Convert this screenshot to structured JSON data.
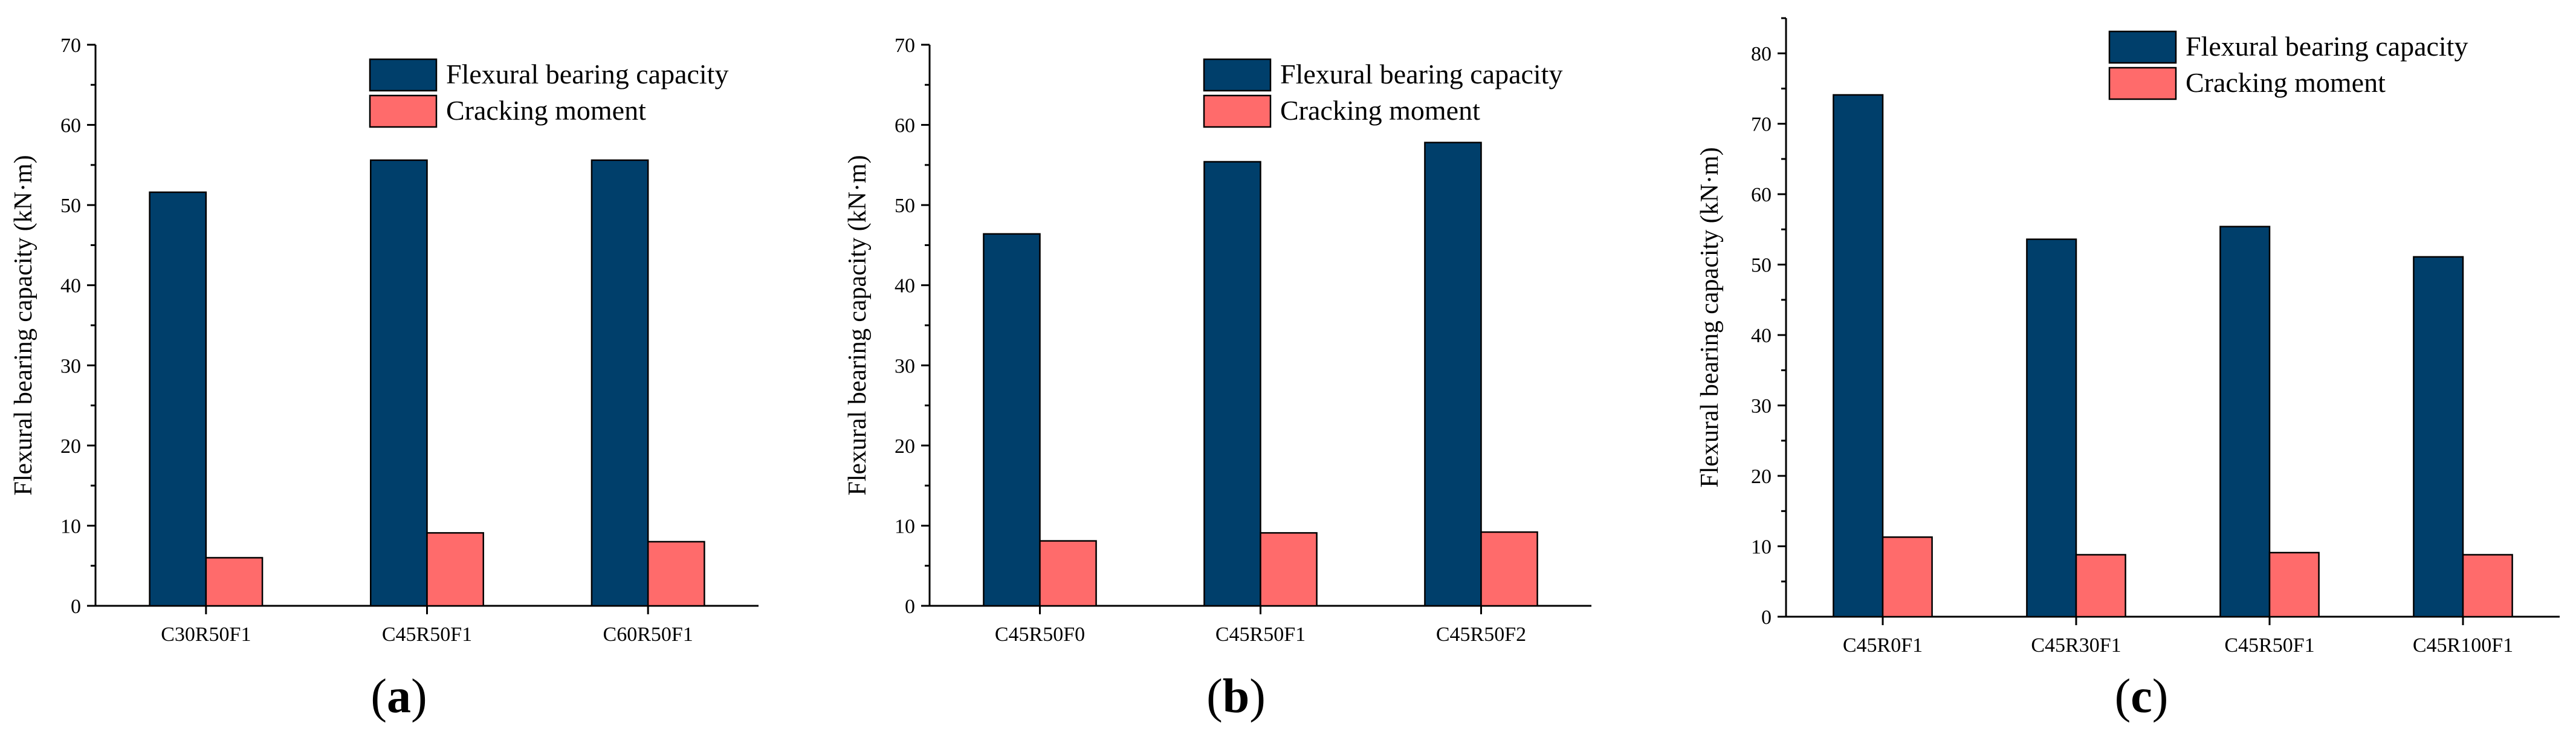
{
  "colors": {
    "flexural": "#003f6b",
    "cracking": "#ff6b6b"
  },
  "chart_data": [
    {
      "type": "bar",
      "panel": "a",
      "panel_label": "(a)",
      "categories": [
        "C30R50F1",
        "C45R50F1",
        "C60R50F1"
      ],
      "series": [
        {
          "name": "Flexural bearing capacity",
          "values": [
            51.6,
            55.6,
            55.6
          ]
        },
        {
          "name": "Cracking moment",
          "values": [
            6.0,
            9.1,
            8.0
          ]
        }
      ],
      "xlabel": "",
      "ylabel": "Flexural bearing capacity (kN·m)",
      "ylim": [
        0,
        70
      ],
      "yticks": [
        0,
        10,
        20,
        30,
        40,
        50,
        60,
        70
      ],
      "legend": "top-right"
    },
    {
      "type": "bar",
      "panel": "b",
      "panel_label": "(b)",
      "categories": [
        "C45R50F0",
        "C45R50F1",
        "C45R50F2"
      ],
      "series": [
        {
          "name": "Flexural bearing capacity",
          "values": [
            46.4,
            55.4,
            57.8
          ]
        },
        {
          "name": "Cracking moment",
          "values": [
            8.1,
            9.1,
            9.2
          ]
        }
      ],
      "xlabel": "",
      "ylabel": "Flexural bearing capacity (kN·m)",
      "ylim": [
        0,
        70
      ],
      "yticks": [
        0,
        10,
        20,
        30,
        40,
        50,
        60,
        70
      ],
      "legend": "top-right"
    },
    {
      "type": "bar",
      "panel": "c",
      "panel_label": "(c)",
      "categories": [
        "C45R0F1",
        "C45R30F1",
        "C45R50F1",
        "C45R100F1"
      ],
      "series": [
        {
          "name": "Flexural bearing capacity",
          "values": [
            74.1,
            53.6,
            55.4,
            51.1
          ]
        },
        {
          "name": "Cracking moment",
          "values": [
            11.3,
            8.8,
            9.1,
            8.8
          ]
        }
      ],
      "xlabel": "",
      "ylabel": "Flexural bearing capacity (kN·m)",
      "ylim": [
        0,
        85
      ],
      "yticks": [
        0,
        10,
        20,
        30,
        40,
        50,
        60,
        70,
        80
      ],
      "legend": "top-right"
    }
  ]
}
